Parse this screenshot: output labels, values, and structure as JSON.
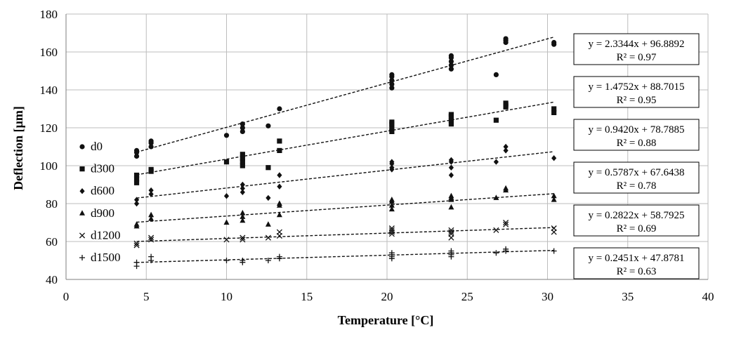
{
  "chart_data": {
    "type": "scatter",
    "title": "",
    "xlabel": "Temperature [°C]",
    "ylabel": "Deflection [µm]",
    "xlim": [
      0,
      40
    ],
    "ylim": [
      40,
      180
    ],
    "xticks": [
      0,
      5,
      10,
      15,
      20,
      25,
      30,
      35,
      40
    ],
    "yticks": [
      40,
      60,
      80,
      100,
      120,
      140,
      160,
      180
    ],
    "grid": true,
    "legend_position": "left",
    "series": [
      {
        "name": "d0",
        "marker": "circle",
        "points": [
          [
            4.4,
            105
          ],
          [
            4.4,
            108
          ],
          [
            4.4,
            107
          ],
          [
            5.3,
            110
          ],
          [
            5.3,
            112
          ],
          [
            5.3,
            113
          ],
          [
            10,
            116
          ],
          [
            11,
            118
          ],
          [
            11,
            120
          ],
          [
            11,
            122
          ],
          [
            12.6,
            121
          ],
          [
            13.3,
            130
          ],
          [
            20.3,
            141
          ],
          [
            20.3,
            143
          ],
          [
            20.3,
            145
          ],
          [
            20.3,
            147
          ],
          [
            20.3,
            148
          ],
          [
            24,
            151
          ],
          [
            24,
            153
          ],
          [
            24,
            155
          ],
          [
            24,
            157
          ],
          [
            24,
            158
          ],
          [
            26.8,
            148
          ],
          [
            27.4,
            165
          ],
          [
            27.4,
            166
          ],
          [
            27.4,
            167
          ],
          [
            30.4,
            164
          ],
          [
            30.4,
            165
          ]
        ],
        "trendline": {
          "slope": 2.3344,
          "intercept": 96.8892,
          "x_range": [
            4.4,
            30.4
          ]
        },
        "equation": "y = 2.3344x + 96.8892",
        "r2": "R² = 0.97"
      },
      {
        "name": "d300",
        "marker": "square",
        "points": [
          [
            4.4,
            91
          ],
          [
            4.4,
            93
          ],
          [
            4.4,
            95
          ],
          [
            5.3,
            97
          ],
          [
            5.3,
            98
          ],
          [
            10,
            102
          ],
          [
            11,
            100
          ],
          [
            11,
            102
          ],
          [
            11,
            104
          ],
          [
            11,
            106
          ],
          [
            12.6,
            99
          ],
          [
            13.3,
            108
          ],
          [
            13.3,
            113
          ],
          [
            20.3,
            118
          ],
          [
            20.3,
            120
          ],
          [
            20.3,
            122
          ],
          [
            20.3,
            123
          ],
          [
            24,
            122
          ],
          [
            24,
            124
          ],
          [
            24,
            126
          ],
          [
            24,
            127
          ],
          [
            26.8,
            124
          ],
          [
            27.4,
            131
          ],
          [
            27.4,
            132
          ],
          [
            27.4,
            133
          ],
          [
            30.4,
            128
          ],
          [
            30.4,
            130
          ]
        ],
        "trendline": {
          "slope": 1.4752,
          "intercept": 88.7015,
          "x_range": [
            4.4,
            30.4
          ]
        },
        "equation": "y = 1.4752x + 88.7015",
        "r2": "R² = 0.95"
      },
      {
        "name": "d600",
        "marker": "diamond",
        "points": [
          [
            4.4,
            80
          ],
          [
            4.4,
            82
          ],
          [
            5.3,
            85
          ],
          [
            5.3,
            87
          ],
          [
            10,
            84
          ],
          [
            11,
            86
          ],
          [
            11,
            88
          ],
          [
            11,
            90
          ],
          [
            12.6,
            83
          ],
          [
            13.3,
            89
          ],
          [
            13.3,
            95
          ],
          [
            20.3,
            98
          ],
          [
            20.3,
            99
          ],
          [
            20.3,
            101
          ],
          [
            20.3,
            102
          ],
          [
            24,
            95
          ],
          [
            24,
            99
          ],
          [
            24,
            102
          ],
          [
            24,
            103
          ],
          [
            26.8,
            102
          ],
          [
            27.4,
            108
          ],
          [
            27.4,
            110
          ],
          [
            30.4,
            104
          ]
        ],
        "trendline": {
          "slope": 0.942,
          "intercept": 78.7885,
          "x_range": [
            4.4,
            30.4
          ]
        },
        "equation": "y = 0.9420x + 78.7885",
        "r2": "R² = 0.88"
      },
      {
        "name": "d900",
        "marker": "triangle",
        "points": [
          [
            4.4,
            68
          ],
          [
            4.4,
            69
          ],
          [
            5.3,
            72
          ],
          [
            5.3,
            74
          ],
          [
            10,
            70
          ],
          [
            11,
            71
          ],
          [
            11,
            73
          ],
          [
            11,
            75
          ],
          [
            12.6,
            69
          ],
          [
            13.3,
            74
          ],
          [
            13.3,
            79
          ],
          [
            13.3,
            80
          ],
          [
            20.3,
            77
          ],
          [
            20.3,
            79
          ],
          [
            20.3,
            81
          ],
          [
            20.3,
            82
          ],
          [
            24,
            78
          ],
          [
            24,
            82
          ],
          [
            24,
            83
          ],
          [
            24,
            84
          ],
          [
            26.8,
            83
          ],
          [
            27.4,
            87
          ],
          [
            27.4,
            88
          ],
          [
            30.4,
            82
          ],
          [
            30.4,
            84
          ]
        ],
        "trendline": {
          "slope": 0.5787,
          "intercept": 67.6438,
          "x_range": [
            4.4,
            30.4
          ]
        },
        "equation": "y = 0.5787x + 67.6438",
        "r2": "R² = 0.78"
      },
      {
        "name": "d1200",
        "marker": "x",
        "points": [
          [
            4.4,
            58
          ],
          [
            4.4,
            59
          ],
          [
            5.3,
            61
          ],
          [
            5.3,
            62
          ],
          [
            10,
            61
          ],
          [
            11,
            61
          ],
          [
            11,
            62
          ],
          [
            12.6,
            62
          ],
          [
            13.3,
            63
          ],
          [
            13.3,
            65
          ],
          [
            20.3,
            64
          ],
          [
            20.3,
            65
          ],
          [
            20.3,
            66
          ],
          [
            20.3,
            67
          ],
          [
            24,
            62
          ],
          [
            24,
            64
          ],
          [
            24,
            65
          ],
          [
            24,
            66
          ],
          [
            26.8,
            66
          ],
          [
            27.4,
            69
          ],
          [
            27.4,
            70
          ],
          [
            30.4,
            65
          ],
          [
            30.4,
            67
          ]
        ],
        "trendline": {
          "slope": 0.2822,
          "intercept": 58.7925,
          "x_range": [
            4.4,
            30.4
          ]
        },
        "equation": "y = 0.2822x + 58.7925",
        "r2": "R² = 0.69"
      },
      {
        "name": "d1500",
        "marker": "plus",
        "points": [
          [
            4.4,
            47
          ],
          [
            4.4,
            49
          ],
          [
            5.3,
            50
          ],
          [
            5.3,
            52
          ],
          [
            10,
            50
          ],
          [
            11,
            49
          ],
          [
            11,
            50
          ],
          [
            12.6,
            50
          ],
          [
            13.3,
            51
          ],
          [
            13.3,
            52
          ],
          [
            20.3,
            51
          ],
          [
            20.3,
            52
          ],
          [
            20.3,
            53
          ],
          [
            20.3,
            54
          ],
          [
            24,
            52
          ],
          [
            24,
            53
          ],
          [
            24,
            54
          ],
          [
            24,
            55
          ],
          [
            26.8,
            54
          ],
          [
            27.4,
            55
          ],
          [
            27.4,
            56
          ],
          [
            30.4,
            55
          ]
        ],
        "trendline": {
          "slope": 0.2451,
          "intercept": 47.8781,
          "x_range": [
            4.4,
            30.4
          ]
        },
        "equation": "y = 0.2451x + 47.8781",
        "r2": "R² = 0.63"
      }
    ]
  }
}
